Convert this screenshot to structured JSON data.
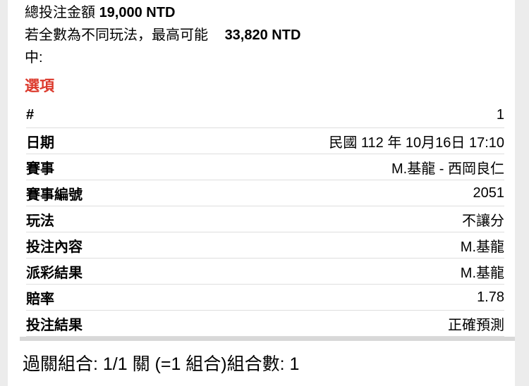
{
  "summary": {
    "total_label": "總投注金額",
    "total_amount": "19,000 NTD",
    "max_label": "若全數為不同玩法，最高可能",
    "max_amount": "33,820 NTD",
    "max_suffix": "中:"
  },
  "section": {
    "title": "選項"
  },
  "details": {
    "rows": [
      {
        "label": "#",
        "value": "1"
      },
      {
        "label": "日期",
        "value": "民國 112 年 10月16日 17:10"
      },
      {
        "label": "賽事",
        "value": "M.基龍 - 西岡良仁"
      },
      {
        "label": "賽事編號",
        "value": "2051"
      },
      {
        "label": "玩法",
        "value": "不讓分"
      },
      {
        "label": "投注內容",
        "value": "M.基龍"
      },
      {
        "label": "派彩結果",
        "value": "M.基龍"
      },
      {
        "label": "賠率",
        "value": "1.78"
      },
      {
        "label": "投注結果",
        "value": "正確預測"
      }
    ]
  },
  "footer": {
    "combo_text": "過關組合: 1/1 關 (=1 組合)組合數: 1"
  },
  "colors": {
    "accent_red": "#dc392c",
    "gutter_bg": "#ececec",
    "card_bg": "#ffffff",
    "divider": "#dedede",
    "thick_divider": "#d8d8d8",
    "text": "#000000"
  }
}
